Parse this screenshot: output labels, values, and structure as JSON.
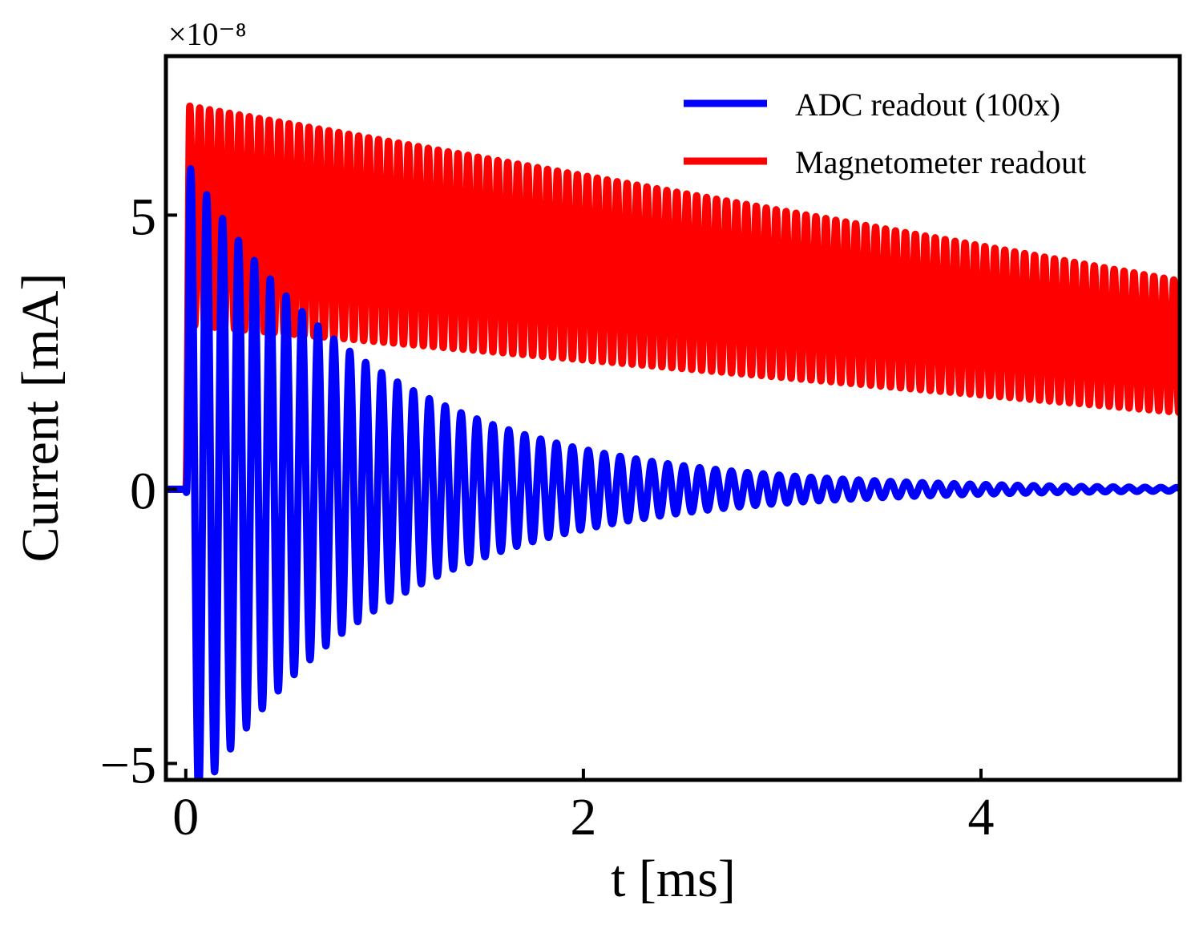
{
  "chart_data": {
    "type": "line",
    "title": "",
    "xlabel": "t [ms]",
    "ylabel": "Current [mA]",
    "y_scale_factor_label": "×10⁻⁸",
    "xlim": [
      -0.1,
      5.0
    ],
    "ylim": [
      -5.3,
      7.9
    ],
    "x_ticks": [
      0,
      2,
      4
    ],
    "x_tick_labels": [
      "0",
      "2",
      "4"
    ],
    "y_ticks": [
      -5,
      0,
      5
    ],
    "y_tick_labels": [
      "−5",
      "0",
      "5"
    ],
    "legend_position": "top-right",
    "colors": {
      "adc": "#0000ff",
      "magnetometer": "#ff0000",
      "axes": "#000000"
    },
    "series": [
      {
        "name": "ADC readout (100x)",
        "color": "#0000ff",
        "model": "damped_oscillation",
        "onset_ms": 0.0,
        "rise_time_ms": 0.02,
        "initial_amplitude": 6.0,
        "decay_time_ms": 0.95,
        "period_ms": 0.08,
        "offset": 0.0,
        "peak_max": 6.0,
        "trough_min": -4.8
      },
      {
        "name": "Magnetometer readout",
        "color": "#ff0000",
        "model": "oscillation_on_decaying_baseline",
        "onset_ms": 0.0,
        "rise_time_ms": 0.02,
        "baseline_start": 5.0,
        "baseline_end": 2.6,
        "oscillation_amplitude": 2.0,
        "amplitude_end": 1.2,
        "period_ms": 0.05,
        "peak_max": 7.3,
        "trough_min": 1.4
      }
    ]
  }
}
